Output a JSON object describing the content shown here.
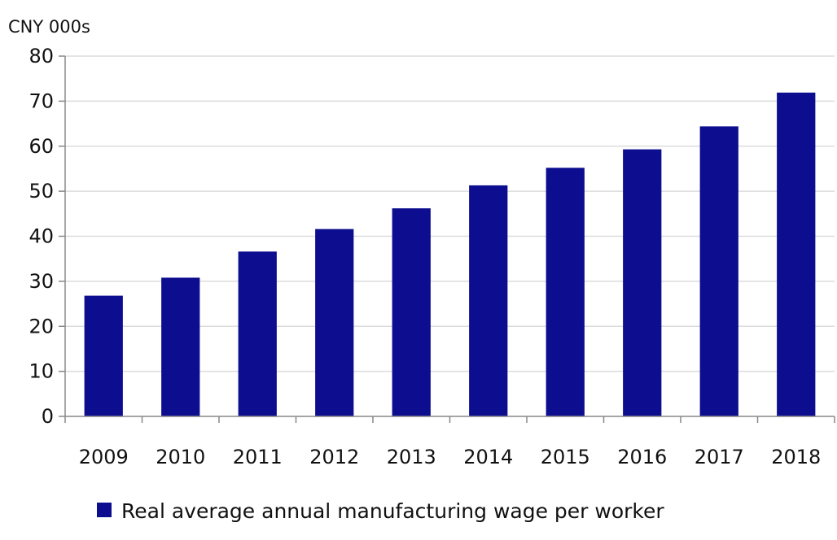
{
  "chart_data": {
    "type": "bar",
    "unit_label": "CNY 000s",
    "categories": [
      "2009",
      "2010",
      "2011",
      "2012",
      "2013",
      "2014",
      "2015",
      "2016",
      "2017",
      "2018"
    ],
    "series": [
      {
        "name": "Real average annual manufacturing wage per worker",
        "values": [
          26.8,
          30.8,
          36.6,
          41.6,
          46.2,
          51.3,
          55.2,
          59.3,
          64.4,
          71.9
        ],
        "color": "#0d0d8f"
      }
    ],
    "ylim": [
      0,
      80
    ],
    "yticks": [
      0,
      10,
      20,
      30,
      40,
      50,
      60,
      70,
      80
    ],
    "grid": true,
    "legend_position": "bottom"
  }
}
